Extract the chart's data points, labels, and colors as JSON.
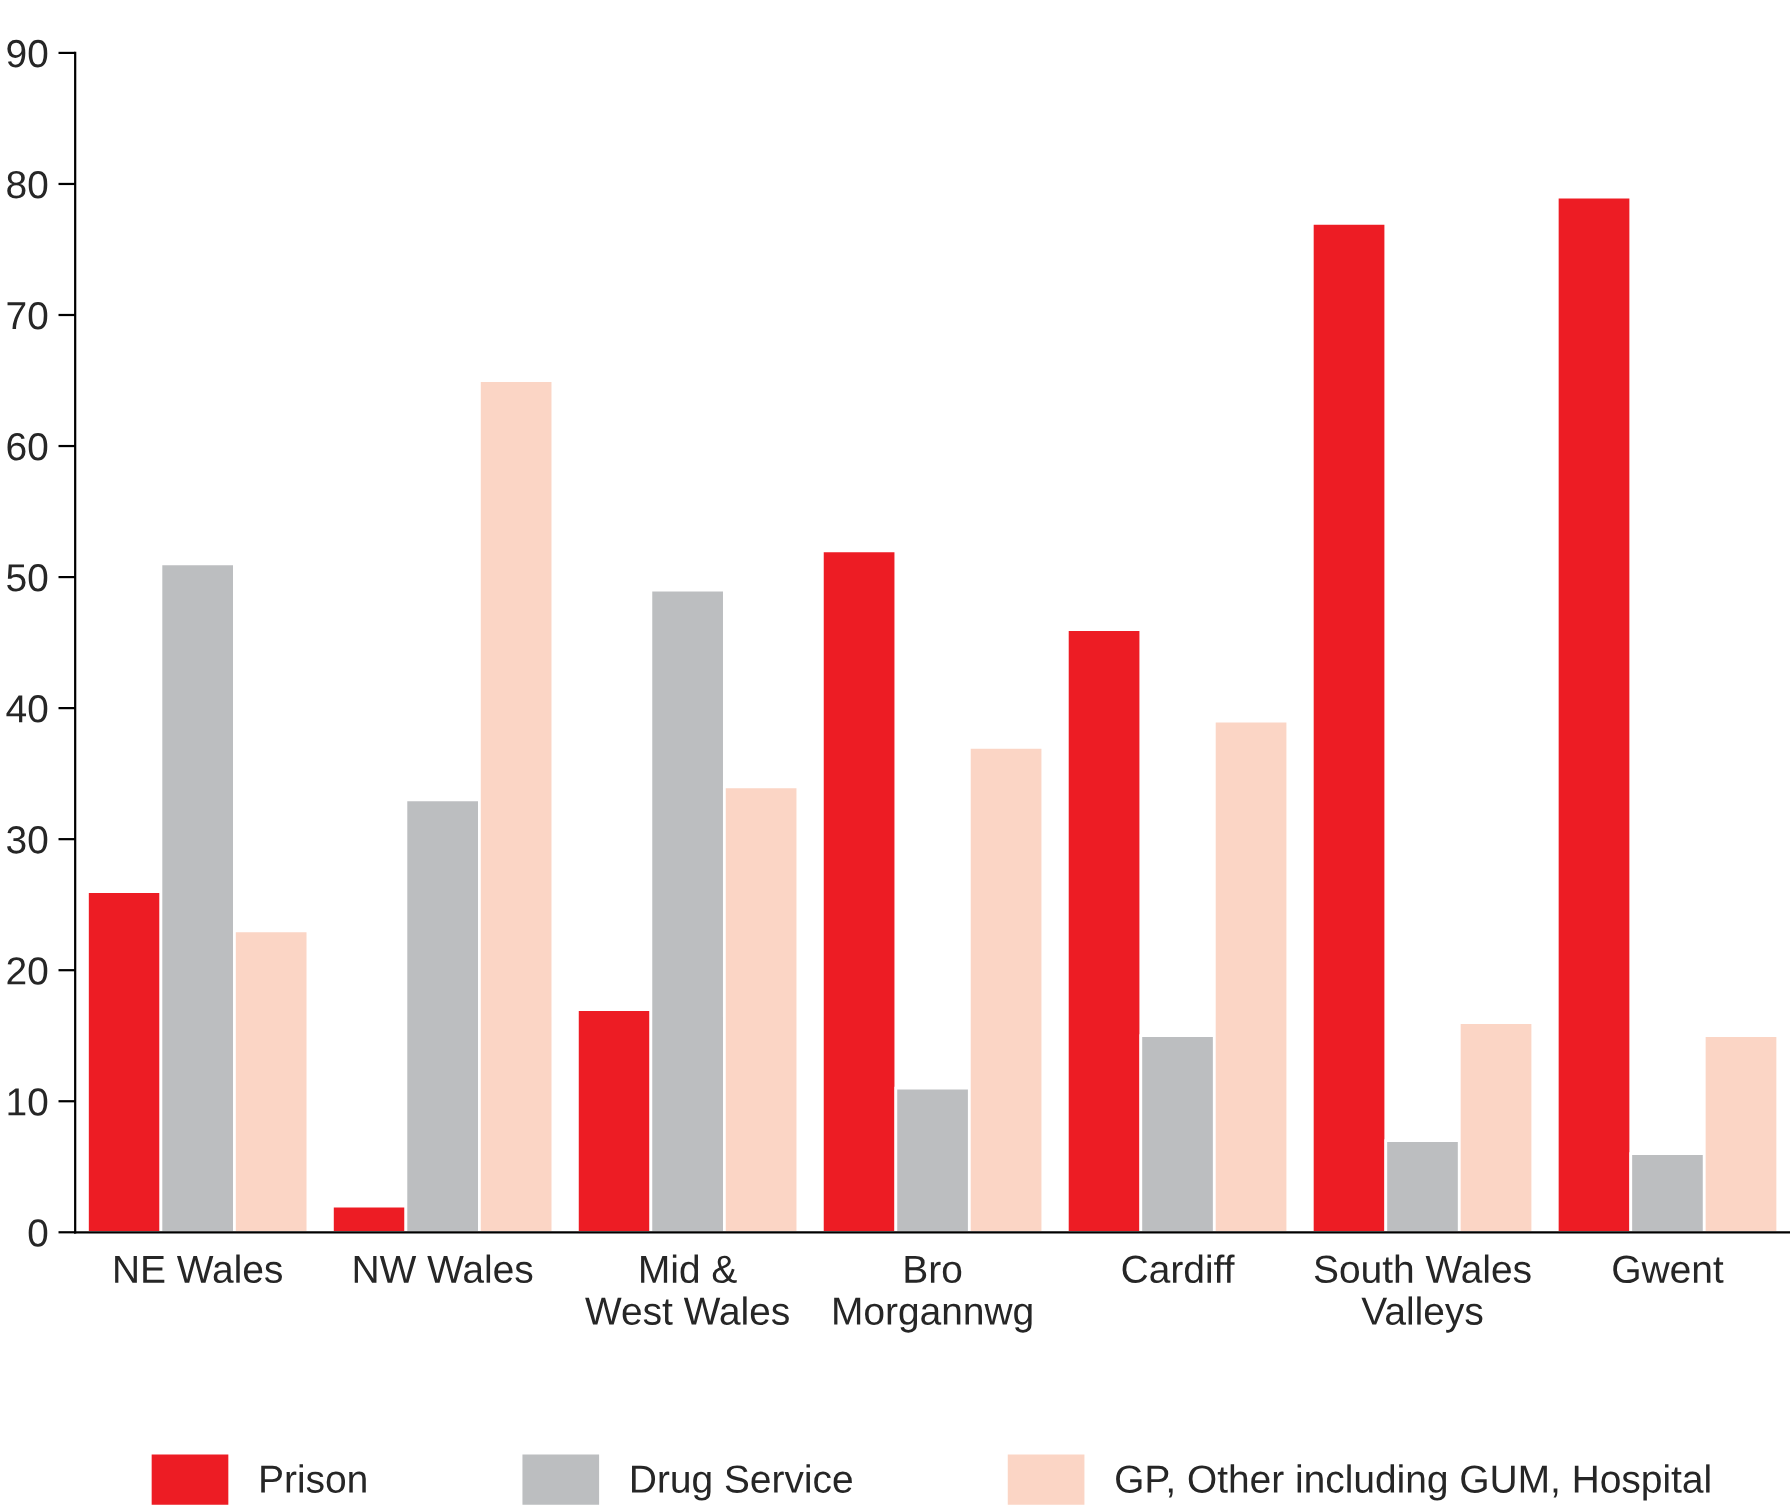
{
  "chart_data": {
    "type": "bar",
    "categories": [
      "NE Wales",
      "NW Wales",
      "Mid &\nWest Wales",
      "Bro\nMorgannwg",
      "Cardiff",
      "South Wales\nValleys",
      "Gwent"
    ],
    "series": [
      {
        "name": "Prison",
        "color": "#ed1c24",
        "values": [
          26,
          2,
          17,
          52,
          46,
          77,
          79
        ]
      },
      {
        "name": "Drug Service",
        "color": "#bcbec0",
        "values": [
          51,
          33,
          49,
          11,
          15,
          7,
          6
        ]
      },
      {
        "name": "GP, Other including GUM, Hospital",
        "color": "#fbd5c5",
        "values": [
          23,
          65,
          34,
          37,
          39,
          16,
          15
        ]
      }
    ],
    "ylim": [
      0,
      90
    ],
    "yticks": [
      0,
      10,
      20,
      30,
      40,
      50,
      60,
      70,
      80,
      90
    ],
    "grid": false,
    "legend": "bottom"
  }
}
